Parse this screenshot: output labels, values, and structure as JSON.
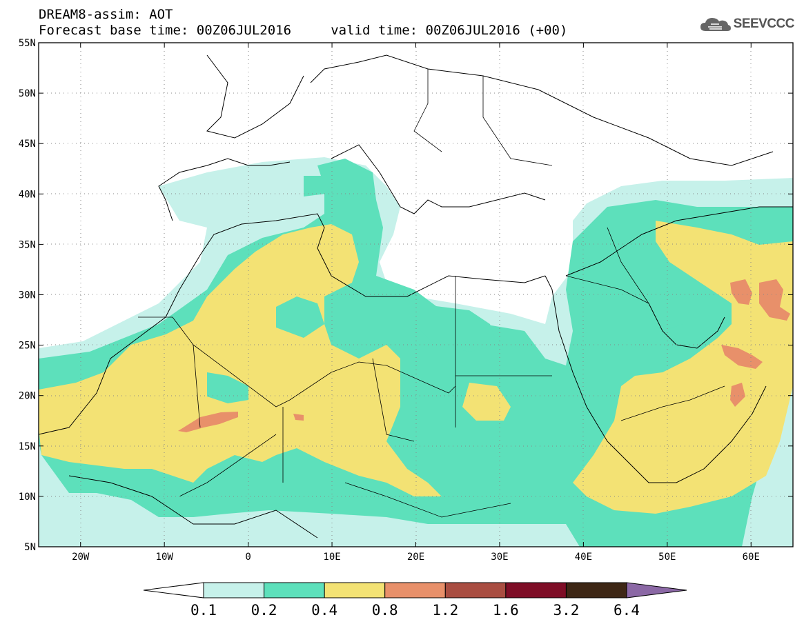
{
  "header": {
    "title_line1": "DREAM8-assim: AOT",
    "title_line2": "Forecast base time: 00Z06JUL2016     valid time: 00Z06JUL2016 (+00)",
    "logo_text": "SEEVCCC"
  },
  "map": {
    "lon_range": [
      -25,
      65
    ],
    "lat_range": [
      5,
      55
    ],
    "lat_labels": [
      "5N",
      "10N",
      "15N",
      "20N",
      "25N",
      "30N",
      "35N",
      "40N",
      "45N",
      "50N",
      "55N"
    ],
    "lon_labels": [
      "20W",
      "10W",
      "0",
      "10E",
      "20E",
      "30E",
      "40E",
      "50E",
      "60E"
    ],
    "grid": "dotted"
  },
  "colorbar": {
    "colors": [
      "#ffffff",
      "#c6f1ea",
      "#5de0bb",
      "#f3e274",
      "#e8906a",
      "#a94d41",
      "#7e0d26",
      "#3e2715",
      "#8b68a5"
    ],
    "labels": [
      "0.1",
      "0.2",
      "0.4",
      "0.8",
      "1.2",
      "1.6",
      "3.2",
      "6.4"
    ]
  }
}
